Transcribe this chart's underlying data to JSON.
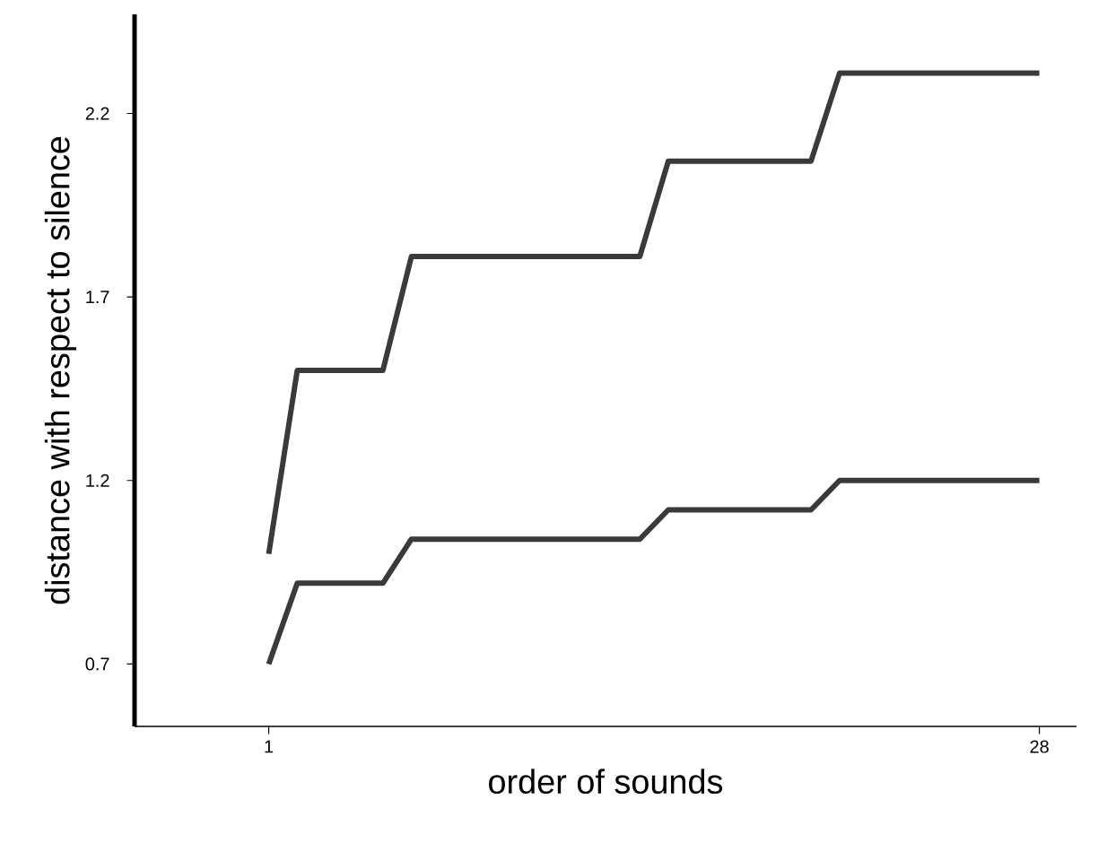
{
  "chart_data": {
    "type": "line",
    "xlabel": "order of sounds",
    "ylabel": "distance with respect to silence",
    "xlim": [
      -3.7,
      29.3
    ],
    "ylim": [
      0.53,
      2.47
    ],
    "xticks": [
      1,
      28
    ],
    "yticks": [
      0.7,
      1.2,
      1.7,
      2.2
    ],
    "series": [
      {
        "color": "#3a3a3a",
        "x": [
          1,
          2,
          5,
          6,
          14,
          15,
          20,
          21,
          28
        ],
        "values": [
          1.0,
          1.5,
          1.5,
          1.81,
          1.81,
          2.07,
          2.07,
          2.31,
          2.31
        ]
      },
      {
        "color": "#3a3a3a",
        "x": [
          1,
          2,
          5,
          6,
          14,
          15,
          20,
          21,
          28
        ],
        "values": [
          0.7,
          0.92,
          0.92,
          1.04,
          1.04,
          1.12,
          1.12,
          1.2,
          1.2
        ]
      }
    ],
    "grid": false,
    "marker": "none",
    "line_style": "solid"
  }
}
